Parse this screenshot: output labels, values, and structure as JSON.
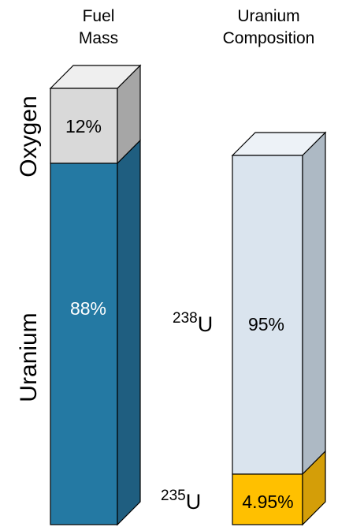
{
  "fuel_column": {
    "header_line1": "Fuel",
    "header_line2": "Mass",
    "top_label": "Oxygen",
    "bottom_label": "Uranium",
    "top_value": "12%",
    "bottom_value": "88%",
    "top_fraction": 0.12,
    "bottom_fraction": 0.88
  },
  "uranium_column": {
    "header_line1": "Uranium",
    "header_line2": "Composition",
    "top_label_mass": "238",
    "top_label_symbol": "U",
    "bottom_label_mass": "235",
    "bottom_label_symbol": "U",
    "top_value": "95%",
    "bottom_value": "4.95%",
    "top_fraction": 0.95,
    "bottom_fraction": 0.0495
  },
  "colors": {
    "oxygen_front": "#d9d9d9",
    "oxygen_top": "#efefef",
    "oxygen_side": "#a6a6a6",
    "uranium_front": "#2479a3",
    "uranium_side": "#1f5e80",
    "u238_front": "#dae4ee",
    "u238_top": "#edf2f7",
    "u238_side": "#adb9c4",
    "u235_front": "#ffc000",
    "u235_side": "#d49e08",
    "outline": "#000000"
  }
}
